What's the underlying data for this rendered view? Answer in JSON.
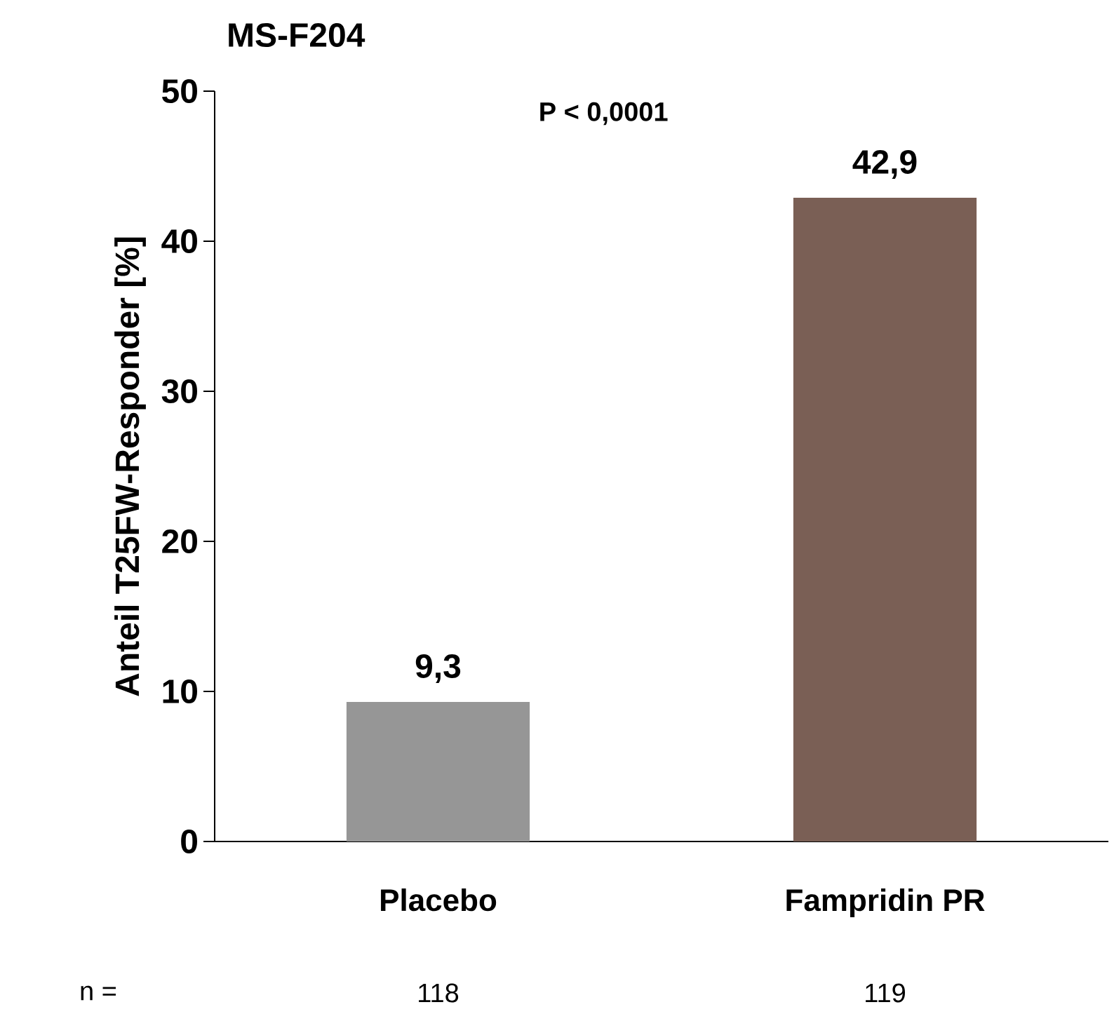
{
  "chart_data": {
    "type": "bar",
    "title": "MS-F204",
    "ylabel": "Anteil T25FW-Responder [%]",
    "categories": [
      "Placebo",
      "Fampridin PR"
    ],
    "values": [
      9.3,
      42.9
    ],
    "colors": [
      "#969696",
      "#7a5f55"
    ],
    "value_labels": [
      "9,3",
      "42,9"
    ],
    "ylim": [
      0,
      50
    ],
    "yticks": [
      0,
      10,
      20,
      30,
      40,
      50
    ],
    "grid": false,
    "annotations": [
      "P < 0,0001",
      "n =",
      "118",
      "119"
    ]
  }
}
